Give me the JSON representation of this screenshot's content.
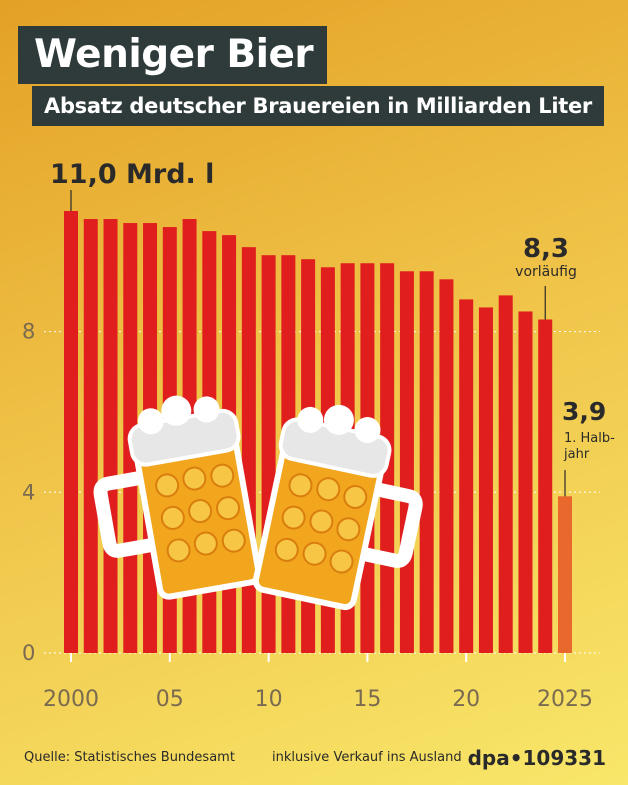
{
  "header": {
    "title": "Weniger Bier",
    "subtitle": "Absatz deutscher Brauereien in Milliarden Liter"
  },
  "chart_data": {
    "type": "bar",
    "title": "Weniger Bier",
    "subtitle": "Absatz deutscher Brauereien in Milliarden Liter",
    "ylabel": "Milliarden Liter",
    "ylim": [
      0,
      11
    ],
    "y_ticks": [
      0,
      4,
      8
    ],
    "y_tick_labels": [
      "0",
      "4",
      "8"
    ],
    "x": [
      2000,
      2001,
      2002,
      2003,
      2004,
      2005,
      2006,
      2007,
      2008,
      2009,
      2010,
      2011,
      2012,
      2013,
      2014,
      2015,
      2016,
      2017,
      2018,
      2019,
      2020,
      2021,
      2022,
      2023,
      2024,
      2025
    ],
    "x_ticks": [
      2000,
      2005,
      2010,
      2015,
      2020,
      2025
    ],
    "x_tick_labels": [
      "2000",
      "05",
      "10",
      "15",
      "20",
      "2025"
    ],
    "series": [
      {
        "values": [
          11.0,
          10.8,
          10.8,
          10.7,
          10.7,
          10.6,
          10.8,
          10.5,
          10.4,
          10.1,
          9.9,
          9.9,
          9.8,
          9.6,
          9.7,
          9.7,
          9.7,
          9.5,
          9.5,
          9.3,
          8.8,
          8.6,
          8.9,
          8.5,
          8.3,
          3.9
        ],
        "colors": [
          "#e01e1e",
          "#e01e1e",
          "#e01e1e",
          "#e01e1e",
          "#e01e1e",
          "#e01e1e",
          "#e01e1e",
          "#e01e1e",
          "#e01e1e",
          "#e01e1e",
          "#e01e1e",
          "#e01e1e",
          "#e01e1e",
          "#e01e1e",
          "#e01e1e",
          "#e01e1e",
          "#e01e1e",
          "#e01e1e",
          "#e01e1e",
          "#e01e1e",
          "#e01e1e",
          "#e01e1e",
          "#e01e1e",
          "#e01e1e",
          "#e01e1e",
          "#e8682e"
        ]
      }
    ],
    "annotations": [
      {
        "x": 2000,
        "value_label": "11,0 Mrd. l",
        "note": ""
      },
      {
        "x": 2024,
        "value_label": "8,3",
        "note": "vorläufig"
      },
      {
        "x": 2025,
        "value_label": "3,9",
        "note": "1. Halb-\njahr"
      }
    ],
    "grid": true
  },
  "footer": {
    "source": "Quelle: Statistisches Bundesamt",
    "note": "inklusive Verkauf ins Ausland",
    "brand": "dpa•109331"
  },
  "colors": {
    "bar": "#e01e1e",
    "bar_highlight": "#e8682e",
    "title_bg": "#2f3a3a",
    "text_dark": "#2a2a2a",
    "axis_label": "#7a6a50"
  },
  "illustration": {
    "icon": "beer-mugs-icon"
  }
}
